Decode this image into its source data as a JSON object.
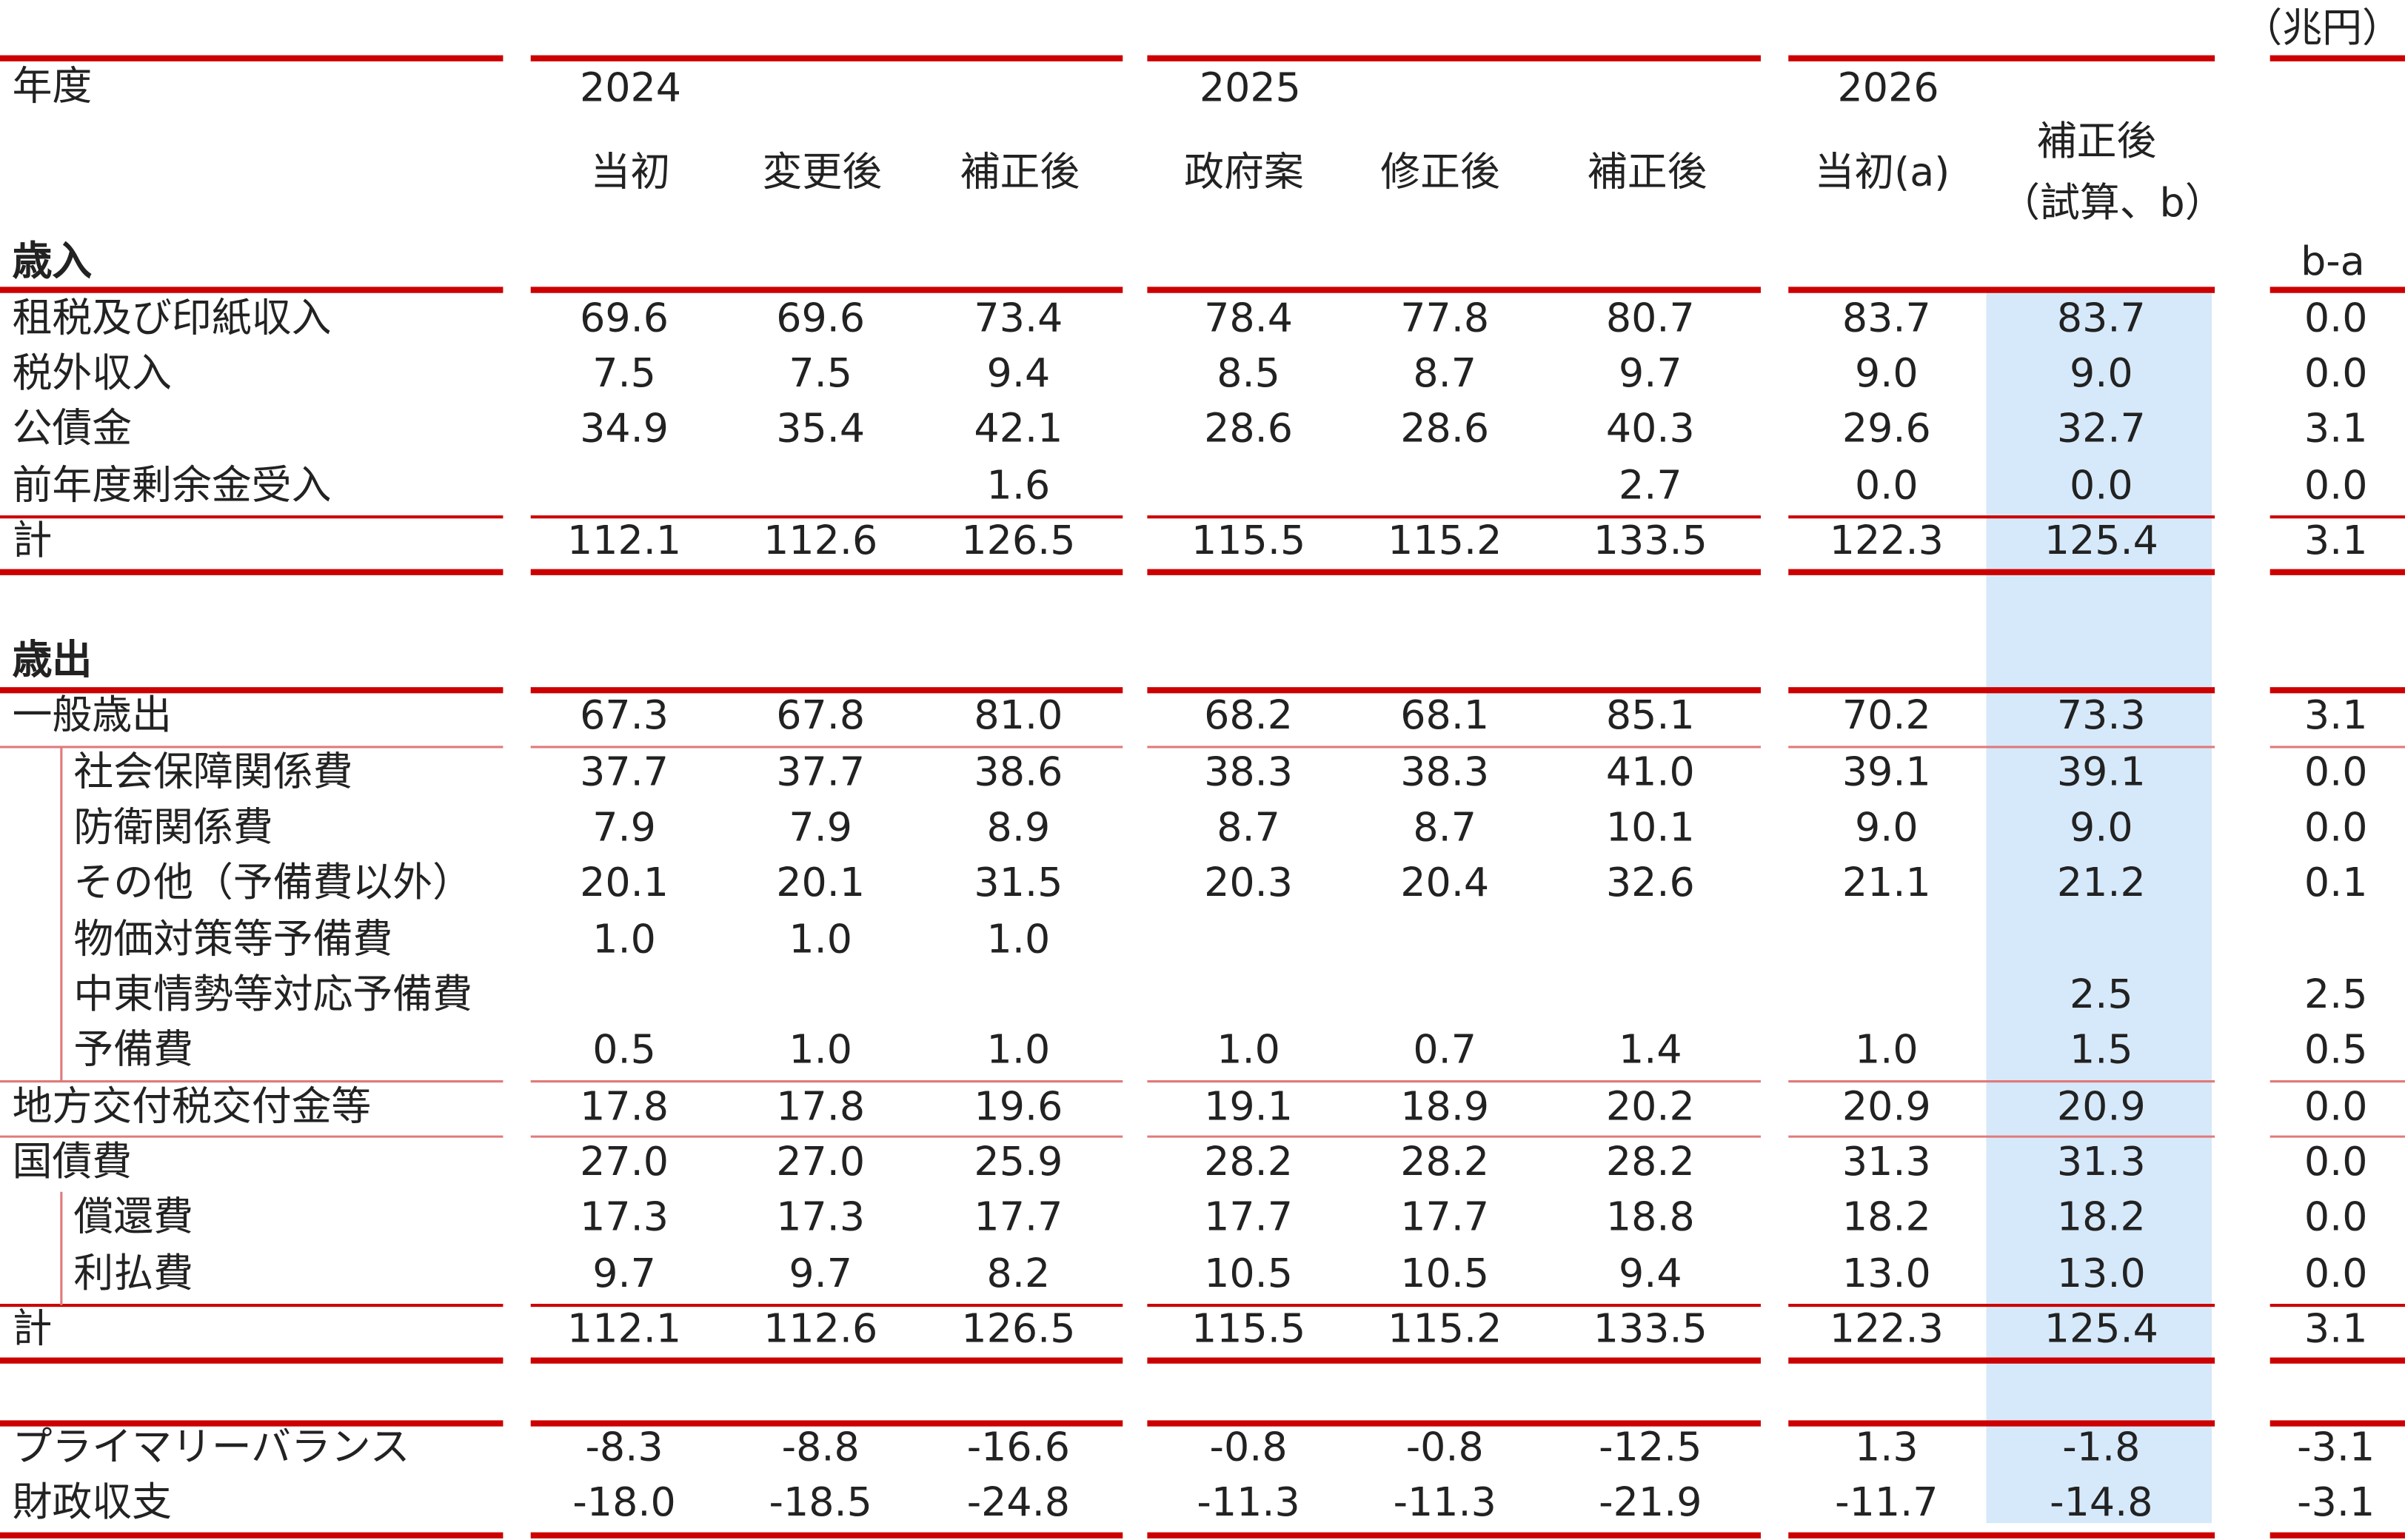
{
  "unit": "（兆円）",
  "header": {
    "fiscal_year_label": "年度",
    "years": [
      "2024",
      "2025",
      "2026"
    ],
    "columns": [
      "当初",
      "変更後",
      "補正後",
      "政府案",
      "修正後",
      "補正後",
      "当初(a)",
      "補正後",
      "（試算、b）"
    ],
    "diff_label": "b-a"
  },
  "revenue": {
    "section_label": "歳入",
    "rows": [
      {
        "label": "租税及び印紙収入",
        "values": [
          "69.6",
          "69.6",
          "73.4",
          "78.4",
          "77.8",
          "80.7",
          "83.7",
          "83.7",
          "0.0"
        ]
      },
      {
        "label": "税外収入",
        "values": [
          "7.5",
          "7.5",
          "9.4",
          "8.5",
          "8.7",
          "9.7",
          "9.0",
          "9.0",
          "0.0"
        ]
      },
      {
        "label": "公債金",
        "values": [
          "34.9",
          "35.4",
          "42.1",
          "28.6",
          "28.6",
          "40.3",
          "29.6",
          "32.7",
          "3.1"
        ]
      },
      {
        "label": "前年度剰余金受入",
        "values": [
          "",
          "",
          "1.6",
          "",
          "",
          "2.7",
          "0.0",
          "0.0",
          "0.0"
        ]
      }
    ],
    "total": {
      "label": "計",
      "values": [
        "112.1",
        "112.6",
        "126.5",
        "115.5",
        "115.2",
        "133.5",
        "122.3",
        "125.4",
        "3.1"
      ]
    }
  },
  "expenditure": {
    "section_label": "歳出",
    "rows": [
      {
        "label": "一般歳出",
        "values": [
          "67.3",
          "67.8",
          "81.0",
          "68.2",
          "68.1",
          "85.1",
          "70.2",
          "73.3",
          "3.1"
        ]
      },
      {
        "label": "社会保障関係費",
        "values": [
          "37.7",
          "37.7",
          "38.6",
          "38.3",
          "38.3",
          "41.0",
          "39.1",
          "39.1",
          "0.0"
        ]
      },
      {
        "label": "防衛関係費",
        "values": [
          "7.9",
          "7.9",
          "8.9",
          "8.7",
          "8.7",
          "10.1",
          "9.0",
          "9.0",
          "0.0"
        ]
      },
      {
        "label": "その他（予備費以外）",
        "values": [
          "20.1",
          "20.1",
          "31.5",
          "20.3",
          "20.4",
          "32.6",
          "21.1",
          "21.2",
          "0.1"
        ]
      },
      {
        "label": "物価対策等予備費",
        "values": [
          "1.0",
          "1.0",
          "1.0",
          "",
          "",
          "",
          "",
          "",
          ""
        ]
      },
      {
        "label": "中東情勢等対応予備費",
        "values": [
          "",
          "",
          "",
          "",
          "",
          "",
          "",
          "2.5",
          "2.5"
        ]
      },
      {
        "label": "予備費",
        "values": [
          "0.5",
          "1.0",
          "1.0",
          "1.0",
          "0.7",
          "1.4",
          "1.0",
          "1.5",
          "0.5"
        ]
      },
      {
        "label": "地方交付税交付金等",
        "values": [
          "17.8",
          "17.8",
          "19.6",
          "19.1",
          "18.9",
          "20.2",
          "20.9",
          "20.9",
          "0.0"
        ]
      },
      {
        "label": "国債費",
        "values": [
          "27.0",
          "27.0",
          "25.9",
          "28.2",
          "28.2",
          "28.2",
          "31.3",
          "31.3",
          "0.0"
        ]
      },
      {
        "label": "償還費",
        "values": [
          "17.3",
          "17.3",
          "17.7",
          "17.7",
          "17.7",
          "18.8",
          "18.2",
          "18.2",
          "0.0"
        ]
      },
      {
        "label": "利払費",
        "values": [
          "9.7",
          "9.7",
          "8.2",
          "10.5",
          "10.5",
          "9.4",
          "13.0",
          "13.0",
          "0.0"
        ]
      }
    ],
    "total": {
      "label": "計",
      "values": [
        "112.1",
        "112.6",
        "126.5",
        "115.5",
        "115.2",
        "133.5",
        "122.3",
        "125.4",
        "3.1"
      ]
    }
  },
  "balance": {
    "rows": [
      {
        "label": "プライマリーバランス",
        "values": [
          "-8.3",
          "-8.8",
          "-16.6",
          "-0.8",
          "-0.8",
          "-12.5",
          "1.3",
          "-1.8",
          "-3.1"
        ]
      },
      {
        "label": "財政収支",
        "values": [
          "-18.0",
          "-18.5",
          "-24.8",
          "-11.3",
          "-11.3",
          "-21.9",
          "-11.7",
          "-14.8",
          "-3.1"
        ]
      }
    ]
  },
  "colors": {
    "rule": "#cc0000",
    "thin_rule": "#e07a7a",
    "highlight": "#d6e9fa",
    "text": "#222222"
  }
}
